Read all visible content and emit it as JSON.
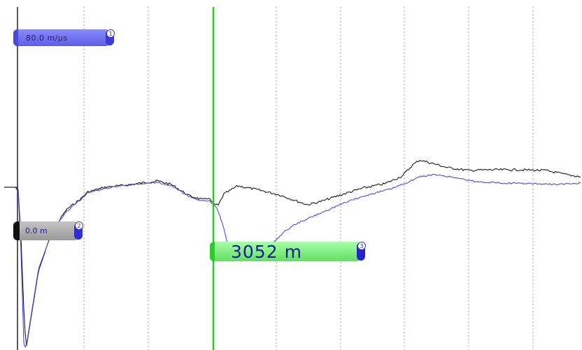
{
  "trace_view": {
    "background": "#ffffff",
    "grid_color": "#b8b8b8",
    "trace_colors": {
      "reference": "#1a1a1a",
      "current": "#4b4bd8"
    },
    "cursor_color": "#22cc22",
    "markers": {
      "velocity": {
        "index": "1",
        "label": "80.0 m/µs",
        "color": "#6a6af0"
      },
      "zero": {
        "index": "2",
        "label": "0.0 m",
        "color": "#a8a8a8"
      },
      "distance": {
        "index": "3",
        "label": "3052 m",
        "color": "#7cf07c"
      }
    }
  }
}
